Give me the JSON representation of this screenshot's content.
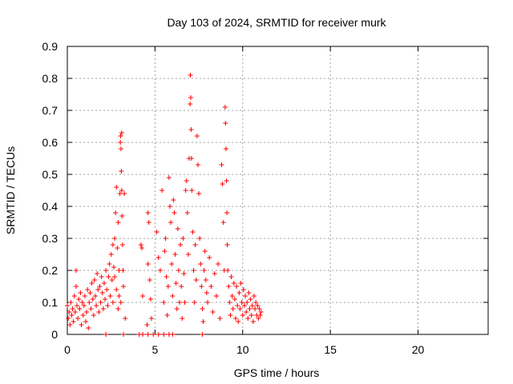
{
  "chart_data": {
    "type": "scatter",
    "title": "Day 103 of 2024, SRMTID for receiver murk",
    "xlabel": "GPS time / hours",
    "ylabel": "SRMTID / TECUs",
    "xlim": [
      0,
      24
    ],
    "ylim": [
      0,
      0.9
    ],
    "xticks": [
      0,
      5,
      10,
      15,
      20
    ],
    "yticks": [
      0,
      0.1,
      0.2,
      0.3,
      0.4,
      0.5,
      0.6,
      0.7,
      0.8,
      0.9
    ],
    "xtick_labels": [
      "0",
      "5",
      "10",
      "15",
      "20"
    ],
    "ytick_labels": [
      "0",
      "0.1",
      "0.2",
      "0.3",
      "0.4",
      "0.5",
      "0.6",
      "0.7",
      "0.8",
      "0.9"
    ],
    "grid": true,
    "marker": "plus",
    "color": "#ff0000",
    "series": [
      {
        "points": [
          [
            0.0,
            0.09
          ],
          [
            0.05,
            0.05
          ],
          [
            0.1,
            0.07
          ],
          [
            0.15,
            0.03
          ],
          [
            0.2,
            0.1
          ],
          [
            0.25,
            0.06
          ],
          [
            0.3,
            0.08
          ],
          [
            0.35,
            0.04
          ],
          [
            0.4,
            0.12
          ],
          [
            0.45,
            0.07
          ],
          [
            0.5,
            0.15
          ],
          [
            0.55,
            0.09
          ],
          [
            0.5,
            0.2
          ],
          [
            0.6,
            0.05
          ],
          [
            0.65,
            0.11
          ],
          [
            0.7,
            0.08
          ],
          [
            0.75,
            0.13
          ],
          [
            0.8,
            0.03
          ],
          [
            0.85,
            0.1
          ],
          [
            0.9,
            0.06
          ],
          [
            0.95,
            0.09
          ],
          [
            1.0,
            0.12
          ],
          [
            1.05,
            0.04
          ],
          [
            1.1,
            0.07
          ],
          [
            1.15,
            0.14
          ],
          [
            1.2,
            0.02
          ],
          [
            1.25,
            0.1
          ],
          [
            1.3,
            0.13
          ],
          [
            1.35,
            0.08
          ],
          [
            1.4,
            0.16
          ],
          [
            1.45,
            0.11
          ],
          [
            1.5,
            0.06
          ],
          [
            1.55,
            0.17
          ],
          [
            1.6,
            0.12
          ],
          [
            1.65,
            0.09
          ],
          [
            1.7,
            0.19
          ],
          [
            1.75,
            0.14
          ],
          [
            1.8,
            0.07
          ],
          [
            1.85,
            0.15
          ],
          [
            1.9,
            0.1
          ],
          [
            1.95,
            0.18
          ],
          [
            2.0,
            0.13
          ],
          [
            2.05,
            0.08
          ],
          [
            2.1,
            0.16
          ],
          [
            2.15,
            0.11
          ],
          [
            2.2,
            0.2
          ],
          [
            2.25,
            0.14
          ],
          [
            2.3,
            0.09
          ],
          [
            2.35,
            0.18
          ],
          [
            2.4,
            0.22
          ],
          [
            2.45,
            0.12
          ],
          [
            2.5,
            0.25
          ],
          [
            2.55,
            0.17
          ],
          [
            2.6,
            0.28
          ],
          [
            2.65,
            0.21
          ],
          [
            2.7,
            0.3
          ],
          [
            2.75,
            0.38
          ],
          [
            2.8,
            0.46
          ],
          [
            2.85,
            0.27
          ],
          [
            2.9,
            0.35
          ],
          [
            2.95,
            0.2
          ],
          [
            3.0,
            0.44
          ],
          [
            3.02,
            0.6
          ],
          [
            3.04,
            0.62
          ],
          [
            3.06,
            0.58
          ],
          [
            3.08,
            0.51
          ],
          [
            3.1,
            0.45
          ],
          [
            3.12,
            0.37
          ],
          [
            3.15,
            0.28
          ],
          [
            3.18,
            0.2
          ],
          [
            3.2,
            0.15
          ],
          [
            3.05,
            0.1
          ],
          [
            2.95,
            0.12
          ],
          [
            3.25,
            0.44
          ],
          [
            3.1,
            0.63
          ],
          [
            2.9,
            0.08
          ],
          [
            2.8,
            0.14
          ],
          [
            2.7,
            0.18
          ],
          [
            3.3,
            0.05
          ],
          [
            2.6,
            0.1
          ],
          [
            4.2,
            0.28
          ],
          [
            4.25,
            0.27
          ],
          [
            4.3,
            0.12
          ],
          [
            4.6,
            0.38
          ],
          [
            4.65,
            0.35
          ],
          [
            4.7,
            0.17
          ],
          [
            4.75,
            0.11
          ],
          [
            4.8,
            0.05
          ],
          [
            4.6,
            0.22
          ],
          [
            4.55,
            0.03
          ],
          [
            5.1,
            0.32
          ],
          [
            5.2,
            0.24
          ],
          [
            5.3,
            0.2
          ],
          [
            5.4,
            0.45
          ],
          [
            5.5,
            0.1
          ],
          [
            5.55,
            0.26
          ],
          [
            5.6,
            0.3
          ],
          [
            5.65,
            0.18
          ],
          [
            5.7,
            0.06
          ],
          [
            5.75,
            0.15
          ],
          [
            5.8,
            0.49
          ],
          [
            5.85,
            0.4
          ],
          [
            5.9,
            0.35
          ],
          [
            5.95,
            0.22
          ],
          [
            6.0,
            0.12
          ],
          [
            6.05,
            0.42
          ],
          [
            6.1,
            0.38
          ],
          [
            6.15,
            0.25
          ],
          [
            6.2,
            0.16
          ],
          [
            6.25,
            0.08
          ],
          [
            6.3,
            0.33
          ],
          [
            6.35,
            0.2
          ],
          [
            6.4,
            0.1
          ],
          [
            6.45,
            0.28
          ],
          [
            6.5,
            0.15
          ],
          [
            6.55,
            0.05
          ],
          [
            6.6,
            0.3
          ],
          [
            6.65,
            0.19
          ],
          [
            6.7,
            0.1
          ],
          [
            6.75,
            0.45
          ],
          [
            6.8,
            0.48
          ],
          [
            6.85,
            0.38
          ],
          [
            6.9,
            0.25
          ],
          [
            6.95,
            0.55
          ],
          [
            7.0,
            0.72
          ],
          [
            7.02,
            0.81
          ],
          [
            7.04,
            0.74
          ],
          [
            7.06,
            0.64
          ],
          [
            7.08,
            0.55
          ],
          [
            7.1,
            0.45
          ],
          [
            7.15,
            0.32
          ],
          [
            7.2,
            0.2
          ],
          [
            7.25,
            0.1
          ],
          [
            7.3,
            0.28
          ],
          [
            7.35,
            0.17
          ],
          [
            7.4,
            0.62
          ],
          [
            7.45,
            0.53
          ],
          [
            7.5,
            0.44
          ],
          [
            7.55,
            0.3
          ],
          [
            7.6,
            0.22
          ],
          [
            7.65,
            0.15
          ],
          [
            7.7,
            0.08
          ],
          [
            7.75,
            0.04
          ],
          [
            7.8,
            0.2
          ],
          [
            7.85,
            0.26
          ],
          [
            7.9,
            0.17
          ],
          [
            7.95,
            0.13
          ],
          [
            8.0,
            0.1
          ],
          [
            8.1,
            0.24
          ],
          [
            8.2,
            0.15
          ],
          [
            8.3,
            0.07
          ],
          [
            8.4,
            0.19
          ],
          [
            8.5,
            0.12
          ],
          [
            8.6,
            0.22
          ],
          [
            8.7,
            0.05
          ],
          [
            8.8,
            0.53
          ],
          [
            8.85,
            0.47
          ],
          [
            8.9,
            0.35
          ],
          [
            8.95,
            0.2
          ],
          [
            9.0,
            0.71
          ],
          [
            9.02,
            0.66
          ],
          [
            9.05,
            0.58
          ],
          [
            9.08,
            0.48
          ],
          [
            9.1,
            0.38
          ],
          [
            9.12,
            0.28
          ],
          [
            9.15,
            0.2
          ],
          [
            9.2,
            0.15
          ],
          [
            9.25,
            0.1
          ],
          [
            9.3,
            0.06
          ],
          [
            9.35,
            0.18
          ],
          [
            9.4,
            0.12
          ],
          [
            9.45,
            0.08
          ],
          [
            9.5,
            0.16
          ],
          [
            9.55,
            0.11
          ],
          [
            9.6,
            0.05
          ],
          [
            9.65,
            0.15
          ],
          [
            9.7,
            0.09
          ],
          [
            9.75,
            0.04
          ],
          [
            9.8,
            0.13
          ],
          [
            9.85,
            0.08
          ],
          [
            9.9,
            0.16
          ],
          [
            9.95,
            0.1
          ],
          [
            10.0,
            0.06
          ],
          [
            10.05,
            0.14
          ],
          [
            10.1,
            0.09
          ],
          [
            10.15,
            0.12
          ],
          [
            10.2,
            0.07
          ],
          [
            10.25,
            0.1
          ],
          [
            10.3,
            0.05
          ],
          [
            10.35,
            0.13
          ],
          [
            10.4,
            0.08
          ],
          [
            10.45,
            0.11
          ],
          [
            10.5,
            0.06
          ],
          [
            10.55,
            0.09
          ],
          [
            10.6,
            0.04
          ],
          [
            10.65,
            0.12
          ],
          [
            10.7,
            0.08
          ],
          [
            10.75,
            0.1
          ],
          [
            10.8,
            0.06
          ],
          [
            10.85,
            0.09
          ],
          [
            10.9,
            0.05
          ],
          [
            10.95,
            0.08
          ],
          [
            11.0,
            0.06
          ],
          [
            11.05,
            0.07
          ],
          [
            6.0,
            0.0
          ],
          [
            5.8,
            0.0
          ],
          [
            5.5,
            0.0
          ],
          [
            5.2,
            0.0
          ],
          [
            4.9,
            0.0
          ],
          [
            4.6,
            0.0
          ],
          [
            4.3,
            0.0
          ],
          [
            4.1,
            0.0
          ],
          [
            3.2,
            0.0
          ],
          [
            2.2,
            0.0
          ],
          [
            7.7,
            0.0
          ]
        ]
      }
    ]
  }
}
